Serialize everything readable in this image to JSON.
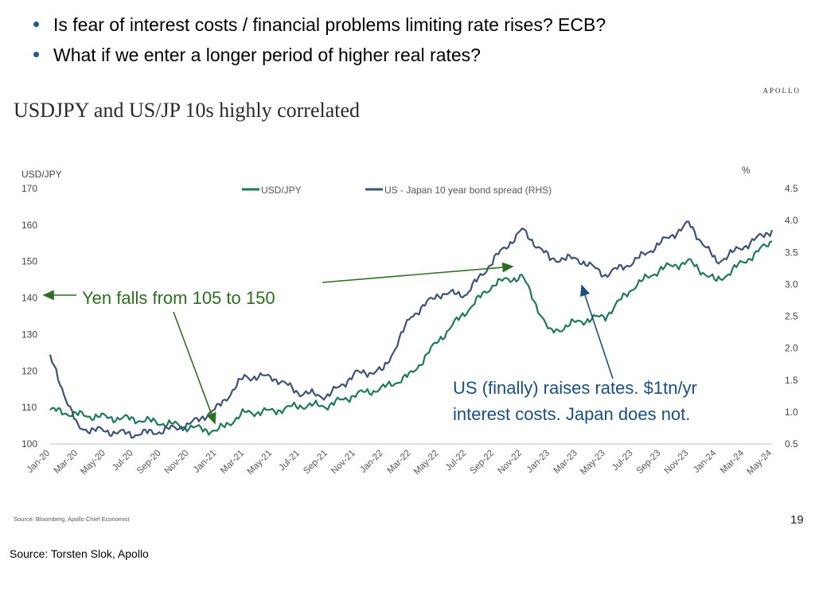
{
  "bullets": [
    "Is fear of interest costs / financial problems limiting rate rises? ECB?",
    "What if we enter a longer period of higher real rates?"
  ],
  "brand": "APOLLO",
  "chart_title": "USDJPY and US/JP 10s highly correlated",
  "source_small": "Source: Bloomberg, Apollo Chief Economist",
  "page_number": "19",
  "source_main": "Source: Torsten Slok, Apollo",
  "colors": {
    "usdjpy": "#1e7a5a",
    "spread": "#3d5275",
    "annotation_green": "#2f6e22",
    "annotation_blue": "#1b4f82"
  },
  "chart_data": {
    "type": "line",
    "title": "USDJPY and US/JP 10s highly correlated",
    "x_categories": [
      "Jan-20",
      "Mar-20",
      "May-20",
      "Jul-20",
      "Sep-20",
      "Nov-20",
      "Jan-21",
      "Mar-21",
      "May-21",
      "Jul-21",
      "Sep-21",
      "Nov-21",
      "Jan-22",
      "Mar-22",
      "May-22",
      "Jul-22",
      "Sep-22",
      "Nov-22",
      "Jan-23",
      "Mar-23",
      "May-23",
      "Jul-23",
      "Sep-23",
      "Nov-23",
      "Jan-24",
      "Mar-24",
      "May-24"
    ],
    "left_axis": {
      "label": "USD/JPY",
      "ylim": [
        100,
        170
      ],
      "ticks": [
        100,
        110,
        120,
        130,
        140,
        150,
        160,
        170
      ]
    },
    "right_axis": {
      "label": "%",
      "ylim": [
        0.5,
        4.5
      ],
      "ticks": [
        0.5,
        1.0,
        1.5,
        2.0,
        2.5,
        3.0,
        3.5,
        4.0,
        4.5
      ]
    },
    "legend_position": "top-center",
    "series": [
      {
        "name": "USD/JPY",
        "axis": "left",
        "color": "#1e7a5a",
        "values": [
          109.3,
          108.0,
          107.3,
          106.8,
          105.8,
          104.6,
          103.5,
          108.5,
          109.0,
          110.5,
          110.5,
          113.5,
          115.3,
          119.0,
          128.5,
          136.5,
          144.0,
          146.0,
          130.5,
          133.5,
          135.0,
          143.0,
          148.0,
          150.0,
          144.5,
          150.0,
          155.5
        ]
      },
      {
        "name": "US - Japan 10 year bond spread (RHS)",
        "axis": "right",
        "color": "#3d5275",
        "values": [
          1.85,
          0.75,
          0.7,
          0.65,
          0.7,
          0.8,
          1.05,
          1.55,
          1.55,
          1.3,
          1.25,
          1.6,
          1.65,
          2.5,
          2.85,
          2.85,
          3.4,
          3.85,
          3.4,
          3.4,
          3.15,
          3.35,
          3.65,
          3.95,
          3.35,
          3.6,
          3.85
        ]
      }
    ],
    "annotations": [
      {
        "text": "Yen falls from 105 to 150",
        "color": "#2f6e22"
      },
      {
        "text": "US (finally) raises rates. $1tn/yr",
        "color": "#1b4f82"
      },
      {
        "text": "interest costs. Japan does not.",
        "color": "#1b4f82"
      }
    ]
  }
}
